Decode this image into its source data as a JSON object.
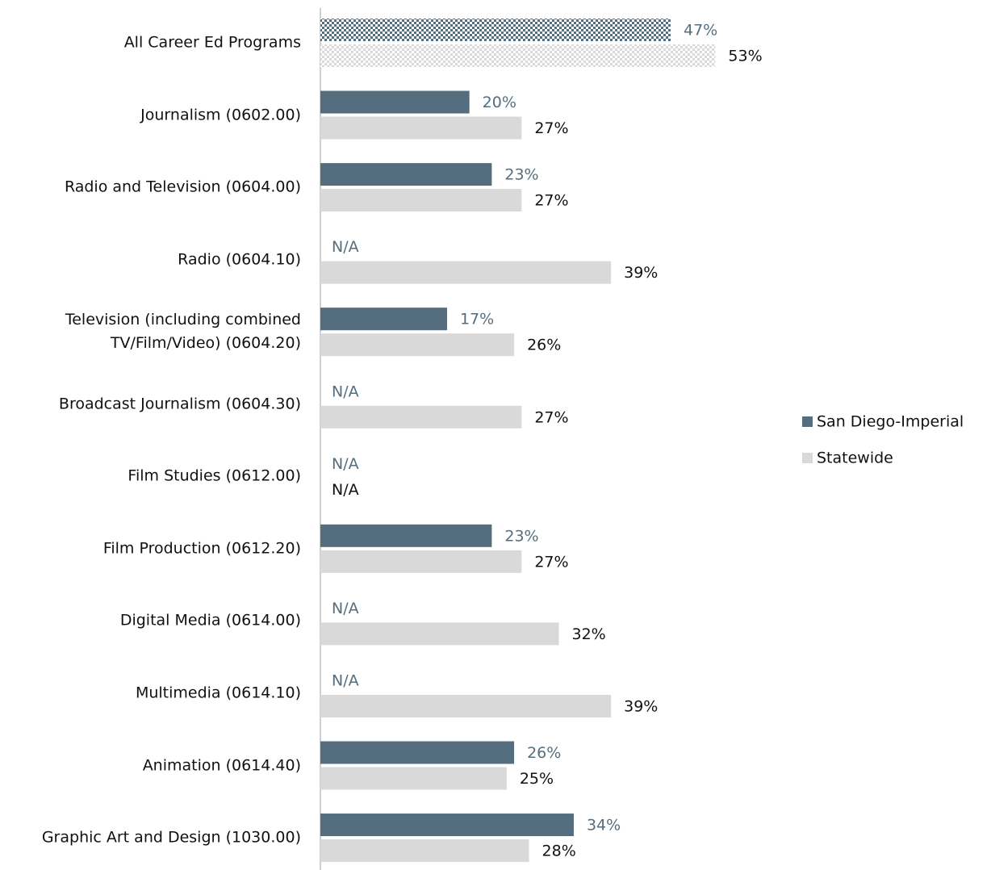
{
  "chart_data": {
    "type": "bar",
    "orientation": "horizontal",
    "categories": [
      "All Career Ed Programs",
      "Journalism (0602.00)",
      "Radio and Television (0604.00)",
      "Radio (0604.10)",
      "Television (including combined\nTV/Film/Video) (0604.20)",
      "Broadcast Journalism (0604.30)",
      "Film Studies (0612.00)",
      "Film Production (0612.20)",
      "Digital Media (0614.00)",
      "Multimedia (0614.10)",
      "Animation (0614.40)",
      "Graphic Art and Design (1030.00)"
    ],
    "series": [
      {
        "name": "San Diego-Imperial",
        "color": "#546e7f",
        "values": [
          47,
          20,
          23,
          null,
          17,
          null,
          null,
          23,
          null,
          null,
          26,
          34
        ],
        "value_labels": [
          "47%",
          "20%",
          "23%",
          "N/A",
          "17%",
          "N/A",
          "N/A",
          "23%",
          "N/A",
          "N/A",
          "26%",
          "34%"
        ]
      },
      {
        "name": "Statewide",
        "color": "#d9d9d9",
        "values": [
          53,
          27,
          27,
          39,
          26,
          27,
          null,
          27,
          32,
          39,
          25,
          28
        ],
        "value_labels": [
          "53%",
          "27%",
          "27%",
          "39%",
          "26%",
          "27%",
          "N/A",
          "27%",
          "32%",
          "39%",
          "25%",
          "28%"
        ]
      }
    ],
    "legend": "right"
  }
}
